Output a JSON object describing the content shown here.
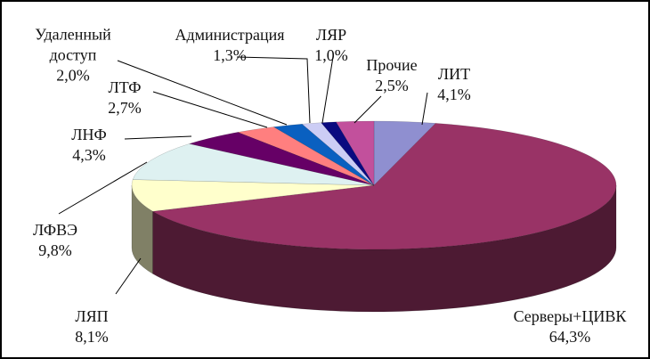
{
  "chart_data": {
    "type": "pie",
    "categories": [
      "ЛИТ",
      "Серверы+ЦИВК",
      "ЛЯП",
      "ЛФВЭ",
      "ЛНФ",
      "ЛТФ",
      "Удаленный доступ",
      "Администрация",
      "ЛЯР",
      "Прочие"
    ],
    "values": [
      4.1,
      64.3,
      8.1,
      9.8,
      4.3,
      2.7,
      2.0,
      1.3,
      1.0,
      2.5
    ],
    "value_labels": [
      "4,1%",
      "64,3%",
      "8,1%",
      "9,8%",
      "4,3%",
      "2,7%",
      "2,0%",
      "1,3%",
      "1,0%",
      "2,5%"
    ],
    "colors": [
      "#8f8fd0",
      "#993366",
      "#ffffcc",
      "#def1f1",
      "#660066",
      "#ff7f7f",
      "#0a60c0",
      "#cccdf5",
      "#0a0a80",
      "#c2509c"
    ]
  }
}
